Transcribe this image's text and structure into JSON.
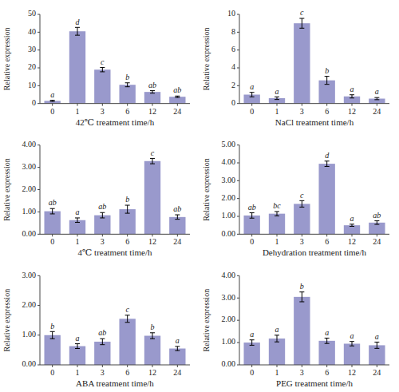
{
  "chart_data": [
    {
      "type": "bar",
      "xlabel": "42℃ treatment time/h",
      "ylabel": "Relative expression",
      "categories": [
        "0",
        "1",
        "3",
        "6",
        "12",
        "24"
      ],
      "values": [
        1.5,
        40.5,
        19.0,
        10.5,
        6.5,
        3.8
      ],
      "errors": [
        0.3,
        2.2,
        1.2,
        1.1,
        0.7,
        0.4
      ],
      "annotations": [
        "a",
        "d",
        "c",
        "b",
        "ab",
        "ab"
      ],
      "color": "#9999cc",
      "grid": false,
      "ylim": [
        0,
        50
      ],
      "yticks": [
        0,
        10,
        20,
        30,
        40,
        50
      ]
    },
    {
      "type": "bar",
      "xlabel": "NaCl treatment time/h",
      "ylabel": "Relative expression",
      "categories": [
        "0",
        "1",
        "3",
        "6",
        "12",
        "24"
      ],
      "values": [
        1.0,
        0.6,
        9.0,
        2.6,
        0.8,
        0.55
      ],
      "errors": [
        0.25,
        0.15,
        0.55,
        0.45,
        0.18,
        0.12
      ],
      "annotations": [
        "a",
        "a",
        "c",
        "b",
        "a",
        "a"
      ],
      "color": "#9999cc",
      "grid": false,
      "ylim": [
        0,
        10
      ],
      "yticks": [
        0,
        2,
        4,
        6,
        8,
        10
      ]
    },
    {
      "type": "bar",
      "xlabel": "4℃ treatment time/h",
      "ylabel": "Relative expression",
      "categories": [
        "0",
        "1",
        "3",
        "6",
        "12",
        "24"
      ],
      "values": [
        1.03,
        0.63,
        0.85,
        1.12,
        3.28,
        0.77
      ],
      "errors": [
        0.12,
        0.1,
        0.12,
        0.18,
        0.12,
        0.1
      ],
      "annotations": [
        "ab",
        "a",
        "ab",
        "b",
        "c",
        "ab"
      ],
      "color": "#9999cc",
      "grid": false,
      "ylim": [
        0,
        4.0
      ],
      "yticks": [
        {
          "value": 0.0,
          "label": "0.00"
        },
        {
          "value": 1.0,
          "label": "1.00"
        },
        {
          "value": 2.0,
          "label": "2.00"
        },
        {
          "value": 3.0,
          "label": "3.00"
        },
        {
          "value": 4.0,
          "label": "4.00"
        }
      ]
    },
    {
      "type": "bar",
      "xlabel": "Dehydration treatment time/h",
      "ylabel": "Relative expression",
      "categories": [
        "0",
        "1",
        "3",
        "6",
        "12",
        "24"
      ],
      "values": [
        1.05,
        1.15,
        1.7,
        3.95,
        0.5,
        0.65
      ],
      "errors": [
        0.15,
        0.12,
        0.18,
        0.15,
        0.06,
        0.1
      ],
      "annotations": [
        "ab",
        "bc",
        "c",
        "d",
        "a",
        "ab"
      ],
      "color": "#9999cc",
      "grid": false,
      "ylim": [
        0,
        5.0
      ],
      "yticks": [
        {
          "value": 0.0,
          "label": "0.00"
        },
        {
          "value": 1.0,
          "label": "1.00"
        },
        {
          "value": 2.0,
          "label": "2.00"
        },
        {
          "value": 3.0,
          "label": "3.00"
        },
        {
          "value": 4.0,
          "label": "4.00"
        },
        {
          "value": 5.0,
          "label": "5.00"
        }
      ]
    },
    {
      "type": "bar",
      "xlabel": "ABA treatment time/h",
      "ylabel": "Relative expression",
      "categories": [
        "0",
        "1",
        "3",
        "6",
        "12",
        "24"
      ],
      "values": [
        1.0,
        0.63,
        0.78,
        1.55,
        0.98,
        0.55
      ],
      "errors": [
        0.12,
        0.08,
        0.1,
        0.12,
        0.1,
        0.07
      ],
      "annotations": [
        "b",
        "a",
        "ab",
        "c",
        "b",
        "a"
      ],
      "color": "#9999cc",
      "grid": false,
      "ylim": [
        0,
        3.0
      ],
      "yticks": [
        {
          "value": 0.0,
          "label": "0.00"
        },
        {
          "value": 1.0,
          "label": "1.00"
        },
        {
          "value": 2.0,
          "label": "2.00"
        },
        {
          "value": 3.0,
          "label": "3.00"
        }
      ]
    },
    {
      "type": "bar",
      "xlabel": "PEG treatment time/h",
      "ylabel": "Relative expression",
      "categories": [
        "0",
        "1",
        "3",
        "6",
        "12",
        "24"
      ],
      "values": [
        1.0,
        1.18,
        3.05,
        1.08,
        0.95,
        0.88
      ],
      "errors": [
        0.12,
        0.15,
        0.22,
        0.12,
        0.1,
        0.14
      ],
      "annotations": [
        "a",
        "a",
        "b",
        "a",
        "a",
        "a"
      ],
      "color": "#9999cc",
      "grid": false,
      "ylim": [
        0,
        4.0
      ],
      "yticks": [
        {
          "value": 0.0,
          "label": "0.00"
        },
        {
          "value": 1.0,
          "label": "1.00"
        },
        {
          "value": 2.0,
          "label": "2.00"
        },
        {
          "value": 3.0,
          "label": "3.00"
        },
        {
          "value": 4.0,
          "label": "4.00"
        }
      ]
    }
  ]
}
